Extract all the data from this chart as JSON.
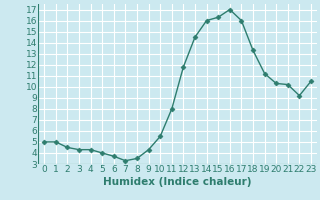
{
  "x": [
    0,
    1,
    2,
    3,
    4,
    5,
    6,
    7,
    8,
    9,
    10,
    11,
    12,
    13,
    14,
    15,
    16,
    17,
    18,
    19,
    20,
    21,
    22,
    23
  ],
  "y": [
    5.0,
    5.0,
    4.5,
    4.3,
    4.3,
    4.0,
    3.7,
    3.3,
    3.5,
    4.3,
    5.5,
    8.0,
    11.8,
    14.5,
    16.0,
    16.3,
    17.0,
    16.0,
    13.3,
    11.2,
    10.3,
    10.2,
    9.2,
    10.5
  ],
  "line_color": "#2e7d6e",
  "marker": "D",
  "marker_size": 2.5,
  "bg_color": "#cce9f0",
  "grid_color": "#ffffff",
  "xlabel": "Humidex (Indice chaleur)",
  "ylim": [
    3,
    17.5
  ],
  "xlim": [
    -0.5,
    23.5
  ],
  "yticks": [
    3,
    4,
    5,
    6,
    7,
    8,
    9,
    10,
    11,
    12,
    13,
    14,
    15,
    16,
    17
  ],
  "xticks": [
    0,
    1,
    2,
    3,
    4,
    5,
    6,
    7,
    8,
    9,
    10,
    11,
    12,
    13,
    14,
    15,
    16,
    17,
    18,
    19,
    20,
    21,
    22,
    23
  ],
  "tick_fontsize": 6.5,
  "label_fontsize": 7.5
}
